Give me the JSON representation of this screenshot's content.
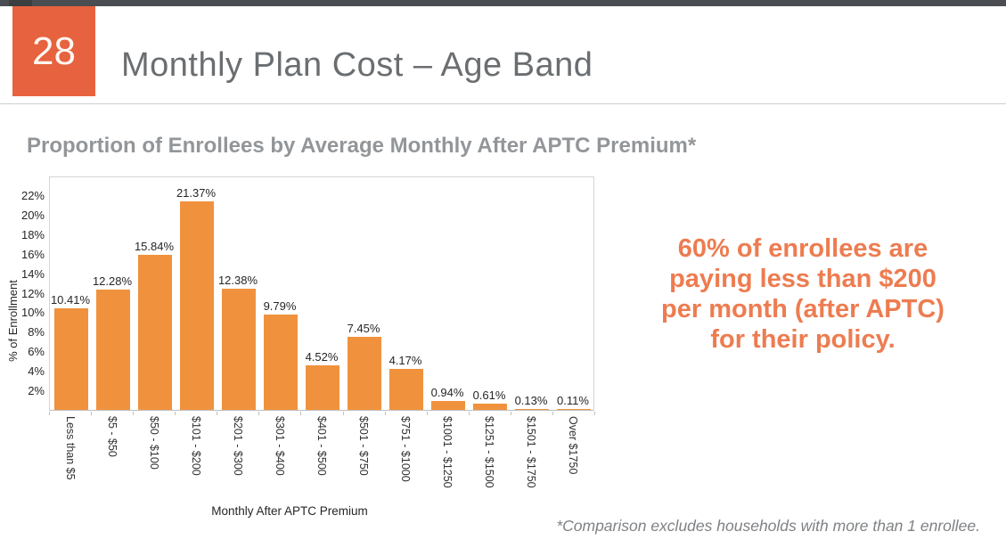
{
  "header": {
    "page_number": "28",
    "title": "Monthly Plan Cost – Age Band"
  },
  "subtitle": "Proportion of Enrollees by Average Monthly After APTC Premium*",
  "chart_data": {
    "type": "bar",
    "title": "Proportion of Enrollees by Average Monthly After APTC Premium*",
    "categories": [
      "Less than $5",
      "$5 - $50",
      "$50 - $100",
      "$101 - $200",
      "$201 - $300",
      "$301 - $400",
      "$401 - $500",
      "$501 - $750",
      "$751 - $1000",
      "$1001 - $1250",
      "$1251 - $1500",
      "$1501 - $1750",
      "Over $1750"
    ],
    "values": [
      10.41,
      12.28,
      15.84,
      21.37,
      12.38,
      9.79,
      4.52,
      7.45,
      4.17,
      0.94,
      0.61,
      0.13,
      0.11
    ],
    "labels": [
      "10.41%",
      "12.28%",
      "15.84%",
      "21.37%",
      "12.38%",
      "9.79%",
      "4.52%",
      "7.45%",
      "4.17%",
      "0.94%",
      "0.61%",
      "0.13%",
      "0.11%"
    ],
    "xlabel": "Monthly After APTC Premium",
    "ylabel": "% of Enrollment",
    "ylim": [
      0,
      24
    ],
    "yticks": [
      2,
      4,
      6,
      8,
      10,
      12,
      14,
      16,
      18,
      20,
      22
    ],
    "ytick_suffix": "%",
    "grid": false,
    "legend": "none",
    "bar_color": "#F0923D"
  },
  "callout": {
    "lines": [
      "60% of enrollees are",
      "paying less than $200",
      "per month (after APTC)",
      "for their policy."
    ]
  },
  "footnote": "*Comparison excludes households with more than 1 enrollee.",
  "colors": {
    "accent_orange_badge": "#E7623E",
    "accent_orange_bar": "#F0923D",
    "accent_orange_callout": "#ED7C50",
    "top_bar": "#4A4E52",
    "title_gray": "#6B6E71",
    "subtitle_gray": "#939699"
  }
}
